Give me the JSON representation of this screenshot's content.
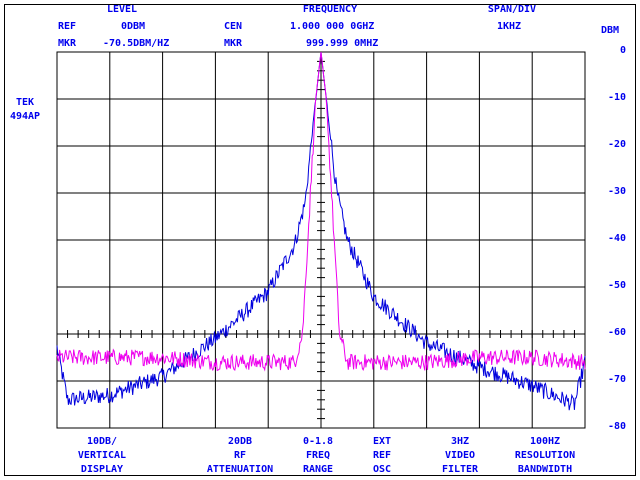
{
  "header": {
    "level_title": "LEVEL",
    "frequency_title": "FREQUENCY",
    "span_title": "SPAN/DIV",
    "ref_label": "REF",
    "ref_value": "0DBM",
    "cen_label": "CEN",
    "cen_value": "1.000 000 0GHZ",
    "span_value": "1KHZ",
    "mkr_label": "MKR",
    "mkr_level": "-70.5DBM/HZ",
    "mkr_freq_label": "MKR",
    "mkr_freq": "999.999 0MHZ"
  },
  "instrument": {
    "line1": "TEK",
    "line2": "494AP"
  },
  "footer": [
    {
      "v": "10DB/",
      "l1": "VERTICAL",
      "l2": "DISPLAY"
    },
    {
      "v": "20DB",
      "l1": "RF",
      "l2": "ATTENUATION"
    },
    {
      "v": "0-1.8",
      "l1": "FREQ",
      "l2": "RANGE"
    },
    {
      "v": "EXT",
      "l1": "REF",
      "l2": "OSC"
    },
    {
      "v": "3HZ",
      "l1": "VIDEO",
      "l2": "FILTER"
    },
    {
      "v": "100HZ",
      "l1": "RESOLUTION",
      "l2": "BANDWIDTH"
    }
  ],
  "chart_data": {
    "type": "line",
    "ylabel": "DBM",
    "ylim": [
      -80,
      0
    ],
    "xlim": [
      -5,
      5
    ],
    "x_unit": "kHz offset from center",
    "yticks": [
      "0",
      "-10",
      "-20",
      "-30",
      "-40",
      "-50",
      "-60",
      "-70",
      "-80"
    ],
    "grid": true,
    "series": [
      {
        "name": "blue-trace",
        "color": "#0000dd",
        "x": [
          -5,
          -4.8,
          -4,
          -3,
          -2,
          -1.5,
          -1,
          -0.5,
          -0.3,
          -0.1,
          0,
          0.1,
          0.3,
          0.5,
          1,
          1.5,
          2,
          3,
          4,
          4.8,
          5
        ],
        "y": [
          -63,
          -74,
          -73,
          -69,
          -61,
          -56,
          -51,
          -41,
          -32,
          -10,
          0,
          -10,
          -30,
          -40,
          -52,
          -57,
          -62,
          -67,
          -71,
          -75,
          -66
        ]
      },
      {
        "name": "magenta-trace",
        "color": "#ee00ee",
        "x": [
          -5,
          -4,
          -3,
          -2,
          -1,
          -0.5,
          -0.35,
          -0.2,
          -0.1,
          0,
          0.1,
          0.2,
          0.35,
          0.5,
          1,
          2,
          3,
          4,
          5
        ],
        "y": [
          -65,
          -65,
          -65,
          -66,
          -66,
          -66,
          -60,
          -30,
          -10,
          0,
          -10,
          -30,
          -60,
          -66,
          -66,
          -66,
          -65,
          -65,
          -66
        ]
      }
    ]
  },
  "colors": {
    "text": "#0000ee",
    "grid": "#000000",
    "blue": "#0000dd",
    "magenta": "#ee00ee"
  }
}
